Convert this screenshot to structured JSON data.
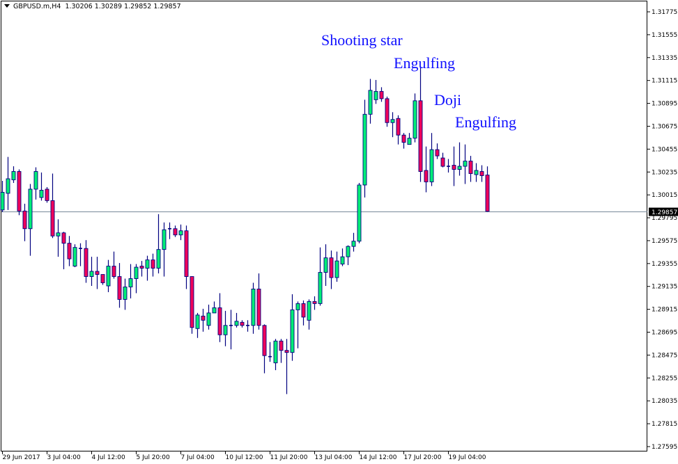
{
  "header": {
    "symbol": "GBPUSD.m,H4",
    "ohlc": "1.30206 1.30289 1.29852 1.29857"
  },
  "annotations": [
    "Shooting star",
    "Engulfing",
    "Doji",
    "Engulfing"
  ],
  "colors": {
    "bull": "#00EE76",
    "bear": "#F0005A",
    "outline": "#000080",
    "price_line": "#778899",
    "annotation": "#1010FF"
  },
  "chart_data": {
    "type": "candlestick",
    "title": "GBPUSD.m,H4",
    "ylim": [
      1.27595,
      1.31775
    ],
    "y_ticks": [
      "1.31775",
      "1.31555",
      "1.31335",
      "1.31115",
      "1.30895",
      "1.30675",
      "1.30455",
      "1.30235",
      "1.30015",
      "1.29795",
      "1.29575",
      "1.29355",
      "1.29135",
      "1.28915",
      "1.28695",
      "1.28475",
      "1.28255",
      "1.28035",
      "1.27815",
      "1.27595"
    ],
    "x_ticks": [
      "29 Jun 2017",
      "3 Jul 04:00",
      "4 Jul 12:00",
      "5 Jul 20:00",
      "7 Jul 04:00",
      "10 Jul 12:00",
      "11 Jul 20:00",
      "13 Jul 04:00",
      "14 Jul 12:00",
      "17 Jul 20:00",
      "19 Jul 04:00"
    ],
    "current_price": "1.29857",
    "grid": false,
    "ohlc_fields": [
      "open",
      "high",
      "low",
      "close"
    ],
    "candles": [
      [
        1.2987,
        1.3015,
        1.2985,
        1.3004
      ],
      [
        1.3003,
        1.3038,
        1.2987,
        1.3017
      ],
      [
        1.3016,
        1.3029,
        1.3013,
        1.3024
      ],
      [
        1.3024,
        1.3026,
        1.2982,
        1.2986
      ],
      [
        1.2986,
        1.2993,
        1.2957,
        1.2969
      ],
      [
        1.2969,
        1.3012,
        1.2943,
        1.3007
      ],
      [
        1.3007,
        1.3028,
        1.2997,
        1.3024
      ],
      [
        1.2999,
        1.3023,
        1.2996,
        1.3006
      ],
      [
        1.3007,
        1.3009,
        1.2994,
        1.2996
      ],
      [
        1.2996,
        1.3022,
        1.296,
        1.2962
      ],
      [
        1.2962,
        1.2978,
        1.2942,
        1.2965
      ],
      [
        1.2965,
        1.2966,
        1.293,
        1.2955
      ],
      [
        1.2955,
        1.2962,
        1.2933,
        1.294
      ],
      [
        1.2933,
        1.2954,
        1.2932,
        1.2951
      ],
      [
        1.295,
        1.2955,
        1.2933,
        1.295
      ],
      [
        1.295,
        1.2958,
        1.2917,
        1.2923
      ],
      [
        1.2923,
        1.2942,
        1.2914,
        1.2928
      ],
      [
        1.2928,
        1.2942,
        1.2911,
        1.2925
      ],
      [
        1.2925,
        1.2925,
        1.2915,
        1.2917
      ],
      [
        1.2914,
        1.2939,
        1.2908,
        1.2933
      ],
      [
        1.2933,
        1.2947,
        1.2921,
        1.2923
      ],
      [
        1.2923,
        1.2936,
        1.2893,
        1.2901
      ],
      [
        1.2901,
        1.2921,
        1.2891,
        1.2913
      ],
      [
        1.2913,
        1.2935,
        1.2902,
        1.2921
      ],
      [
        1.2921,
        1.2935,
        1.2907,
        1.2932
      ],
      [
        1.2933,
        1.2938,
        1.2923,
        1.2931
      ],
      [
        1.2931,
        1.2943,
        1.2919,
        1.2939
      ],
      [
        1.2939,
        1.2945,
        1.2923,
        1.2931
      ],
      [
        1.2931,
        1.2983,
        1.2926,
        1.2949
      ],
      [
        1.2949,
        1.2975,
        1.2923,
        1.2968
      ],
      [
        1.2968,
        1.2975,
        1.2959,
        1.2969
      ],
      [
        1.2969,
        1.2972,
        1.2961,
        1.2963
      ],
      [
        1.2963,
        1.2973,
        1.2958,
        1.2967
      ],
      [
        1.2967,
        1.2972,
        1.2911,
        1.2923
      ],
      [
        1.2923,
        1.2923,
        1.2868,
        1.2874
      ],
      [
        1.2873,
        1.2888,
        1.2864,
        1.2886
      ],
      [
        1.2885,
        1.2892,
        1.287,
        1.2881
      ],
      [
        1.2876,
        1.2896,
        1.2872,
        1.2888
      ],
      [
        1.2888,
        1.2899,
        1.2888,
        1.2893
      ],
      [
        1.2893,
        1.2907,
        1.286,
        1.2867
      ],
      [
        1.2867,
        1.289,
        1.2856,
        1.2876
      ],
      [
        1.2876,
        1.2891,
        1.2853,
        1.2876
      ],
      [
        1.2876,
        1.2888,
        1.2874,
        1.288
      ],
      [
        1.2879,
        1.2881,
        1.2874,
        1.2876
      ],
      [
        1.2876,
        1.2881,
        1.287,
        1.2876
      ],
      [
        1.2876,
        1.2917,
        1.2868,
        1.2911
      ],
      [
        1.2911,
        1.2926,
        1.2872,
        1.2876
      ],
      [
        1.2876,
        1.2877,
        1.283,
        1.2847
      ],
      [
        1.2846,
        1.286,
        1.2841,
        1.2846
      ],
      [
        1.284,
        1.2863,
        1.2833,
        1.2861
      ],
      [
        1.2861,
        1.2863,
        1.284,
        1.2852
      ],
      [
        1.2852,
        1.2863,
        1.281,
        1.285
      ],
      [
        1.285,
        1.2906,
        1.2842,
        1.2891
      ],
      [
        1.2891,
        1.2899,
        1.2854,
        1.2897
      ],
      [
        1.2897,
        1.29,
        1.2876,
        1.2884
      ],
      [
        1.2881,
        1.2901,
        1.2872,
        1.2899
      ],
      [
        1.2899,
        1.2904,
        1.2891,
        1.2897
      ],
      [
        1.2897,
        1.2951,
        1.2895,
        1.2927
      ],
      [
        1.2927,
        1.2954,
        1.2914,
        1.2941
      ],
      [
        1.2941,
        1.2948,
        1.2911,
        1.2922
      ],
      [
        1.2922,
        1.2947,
        1.2918,
        1.2938
      ],
      [
        1.2935,
        1.295,
        1.2933,
        1.2942
      ],
      [
        1.2942,
        1.2953,
        1.2934,
        1.2952
      ],
      [
        1.2952,
        1.2965,
        1.2947,
        1.2957
      ],
      [
        1.2957,
        1.3013,
        1.2955,
        1.3011
      ],
      [
        1.3011,
        1.3093,
        1.2999,
        1.3079
      ],
      [
        1.3079,
        1.3113,
        1.307,
        1.3102
      ],
      [
        1.3093,
        1.3112,
        1.3089,
        1.3101
      ],
      [
        1.3101,
        1.3105,
        1.3091,
        1.3094
      ],
      [
        1.3094,
        1.3096,
        1.3067,
        1.3071
      ],
      [
        1.3071,
        1.3081,
        1.3057,
        1.3074
      ],
      [
        1.3075,
        1.3078,
        1.305,
        1.3059
      ],
      [
        1.3059,
        1.3061,
        1.3046,
        1.3052
      ],
      [
        1.305,
        1.3061,
        1.305,
        1.3056
      ],
      [
        1.3056,
        1.3099,
        1.3052,
        1.3092
      ],
      [
        1.3092,
        1.3125,
        1.3014,
        1.3024
      ],
      [
        1.3025,
        1.3048,
        1.3004,
        1.3014
      ],
      [
        1.3014,
        1.3061,
        1.301,
        1.3045
      ],
      [
        1.3045,
        1.3051,
        1.3036,
        1.3039
      ],
      [
        1.3037,
        1.3042,
        1.3028,
        1.3029
      ],
      [
        1.3029,
        1.3036,
        1.3023,
        1.3029
      ],
      [
        1.303,
        1.3048,
        1.301,
        1.3026
      ],
      [
        1.3026,
        1.3052,
        1.302,
        1.3029
      ],
      [
        1.3029,
        1.305,
        1.3012,
        1.3034
      ],
      [
        1.3034,
        1.3039,
        1.3014,
        1.3022
      ],
      [
        1.3021,
        1.3032,
        1.3014,
        1.3025
      ],
      [
        1.3024,
        1.303,
        1.3014,
        1.302
      ],
      [
        1.30206,
        1.30289,
        1.29852,
        1.29857
      ]
    ]
  }
}
